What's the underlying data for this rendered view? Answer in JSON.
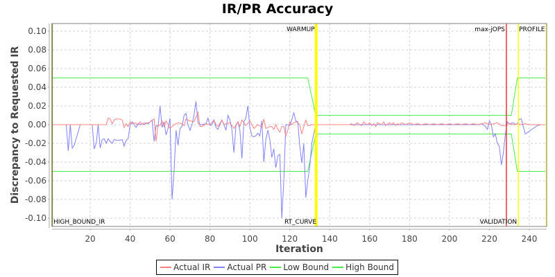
{
  "chart_data": {
    "type": "line",
    "title": "IR/PR Accuracy",
    "xlabel": "Iteration",
    "ylabel": "Discrepancy to Requested IR",
    "xlim": [
      1,
      248
    ],
    "ylim": [
      -0.105,
      0.105
    ],
    "x_ticks": [
      20,
      40,
      60,
      80,
      100,
      120,
      140,
      160,
      180,
      200,
      220,
      240
    ],
    "y_ticks": [
      "0.10",
      "0.08",
      "0.06",
      "0.04",
      "0.02",
      "0.00",
      "-0.02",
      "-0.04",
      "-0.06",
      "-0.08",
      "-0.10"
    ],
    "grid": true,
    "legend_position": "bottom",
    "series": [
      {
        "name": "Actual IR",
        "color": "#ff8080",
        "points": [
          [
            1,
            0
          ],
          [
            28,
            0
          ],
          [
            29,
            0.007
          ],
          [
            30,
            0.006
          ],
          [
            31,
            0.001
          ],
          [
            32,
            0.005
          ],
          [
            33,
            0.006
          ],
          [
            35,
            0.006
          ],
          [
            36,
            0.005
          ],
          [
            37,
            -0.003
          ],
          [
            38,
            0.001
          ],
          [
            39,
            -0.002
          ],
          [
            40,
            0.003
          ],
          [
            41,
            0.001
          ],
          [
            42,
            0.002
          ],
          [
            44,
            0
          ],
          [
            45,
            0.003
          ],
          [
            46,
            0
          ],
          [
            47,
            0.002
          ],
          [
            48,
            0.001
          ],
          [
            50,
            0.003
          ],
          [
            52,
            0.006
          ],
          [
            53,
            -0.018
          ],
          [
            54,
            0.0
          ],
          [
            55,
            -0.001
          ],
          [
            56,
            0.004
          ],
          [
            57,
            -0.002
          ],
          [
            58,
            0.004
          ],
          [
            60,
            -0.004
          ],
          [
            62,
            0.0
          ],
          [
            64,
            0.002
          ],
          [
            66,
            0.001
          ],
          [
            67,
            -0.001
          ],
          [
            68,
            0.006
          ],
          [
            70,
            0.004
          ],
          [
            72,
            0.003
          ],
          [
            74,
            0.013
          ],
          [
            75,
            -0.002
          ],
          [
            76,
            -0.002
          ],
          [
            78,
            0.001
          ],
          [
            80,
            0.0
          ],
          [
            82,
            0.005
          ],
          [
            83,
            0.0
          ],
          [
            84,
            -0.002
          ],
          [
            86,
            0.005
          ],
          [
            87,
            0.0
          ],
          [
            88,
            0.001
          ],
          [
            90,
            0.002
          ],
          [
            92,
            -0.004
          ],
          [
            94,
            0.003
          ],
          [
            95,
            -0.002
          ],
          [
            96,
            0.005
          ],
          [
            98,
            -0.001
          ],
          [
            100,
            0.004
          ],
          [
            101,
            0.0
          ],
          [
            102,
            -0.004
          ],
          [
            104,
            0.0
          ],
          [
            106,
            -0.003
          ],
          [
            107,
            0.006
          ],
          [
            108,
            -0.004
          ],
          [
            110,
            -0.002
          ],
          [
            111,
            -0.002
          ],
          [
            112,
            -0.005
          ],
          [
            113,
            0.0
          ],
          [
            114,
            -0.005
          ],
          [
            115,
            -0.008
          ],
          [
            116,
            -0.002
          ],
          [
            117,
            -0.002
          ],
          [
            118,
            -0.012
          ],
          [
            119,
            -0.006
          ],
          [
            120,
            0.003
          ],
          [
            121,
            0.0
          ],
          [
            122,
            0.002
          ],
          [
            123,
            0.003
          ],
          [
            124,
            0.002
          ],
          [
            125,
            0.0
          ],
          [
            126,
            -0.01
          ],
          [
            127,
            -0.002
          ],
          [
            128,
            0.005
          ],
          [
            129,
            -0.001
          ],
          [
            130,
            -0.001
          ],
          [
            131,
            0.0
          ],
          [
            133,
            0
          ],
          [
            150,
            0
          ],
          [
            151,
            0.001
          ],
          [
            152,
            -0.001
          ],
          [
            154,
            0.002
          ],
          [
            155,
            0
          ],
          [
            156,
            -0.001
          ],
          [
            157,
            0.003
          ],
          [
            158,
            0.001
          ],
          [
            159,
            0
          ],
          [
            160,
            0.002
          ],
          [
            161,
            -0.001
          ],
          [
            162,
            0.001
          ],
          [
            163,
            -0.002
          ],
          [
            164,
            0.002
          ],
          [
            165,
            0.001
          ],
          [
            166,
            0
          ],
          [
            167,
            0.003
          ],
          [
            168,
            -0.001
          ],
          [
            170,
            0.002
          ],
          [
            171,
            0.0
          ],
          [
            172,
            0.002
          ],
          [
            173,
            -0.001
          ],
          [
            174,
            0.001
          ],
          [
            175,
            0.0
          ],
          [
            176,
            0.002
          ],
          [
            178,
            0.0
          ],
          [
            180,
            0.002
          ],
          [
            182,
            0.0
          ],
          [
            184,
            0.001
          ],
          [
            186,
            0.0
          ],
          [
            188,
            0.001
          ],
          [
            190,
            0
          ],
          [
            192,
            0.001
          ],
          [
            194,
            0
          ],
          [
            196,
            0.001
          ],
          [
            198,
            0.0
          ],
          [
            200,
            0.001
          ],
          [
            202,
            0
          ],
          [
            204,
            0.001
          ],
          [
            206,
            0.0
          ],
          [
            208,
            0.001
          ],
          [
            210,
            0
          ],
          [
            212,
            0.001
          ],
          [
            214,
            0
          ],
          [
            216,
            0.001
          ],
          [
            218,
            0.002
          ],
          [
            220,
            0.0
          ],
          [
            222,
            0.001
          ],
          [
            224,
            0.002
          ],
          [
            226,
            -0.001
          ],
          [
            228,
            -0.001
          ],
          [
            230,
            0.001
          ],
          [
            232,
            0.0
          ],
          [
            234,
            0.001
          ],
          [
            236,
            0.0
          ],
          [
            238,
            0.001
          ],
          [
            240,
            0.0
          ],
          [
            242,
            0.0
          ],
          [
            244,
            0.0
          ],
          [
            246,
            0.0
          ],
          [
            248,
            0.0
          ]
        ]
      },
      {
        "name": "Actual PR",
        "color": "#8080ff",
        "points": [
          [
            1,
            0
          ],
          [
            8,
            0
          ],
          [
            9,
            -0.028
          ],
          [
            10,
            0
          ],
          [
            11,
            -0.025
          ],
          [
            12,
            -0.022
          ],
          [
            15,
            0
          ],
          [
            21,
            0
          ],
          [
            22,
            -0.026
          ],
          [
            23,
            -0.02
          ],
          [
            24,
            0
          ],
          [
            25,
            -0.025
          ],
          [
            26,
            -0.016
          ],
          [
            27,
            -0.015
          ],
          [
            28,
            -0.02
          ],
          [
            29,
            -0.015
          ],
          [
            30,
            -0.018
          ],
          [
            31,
            -0.02
          ],
          [
            32,
            -0.016
          ],
          [
            34,
            -0.017
          ],
          [
            36,
            -0.016
          ],
          [
            37,
            -0.023
          ],
          [
            38,
            -0.017
          ],
          [
            39,
            -0.015
          ],
          [
            40,
            0.0
          ],
          [
            41,
            0.003
          ],
          [
            42,
            0.0
          ],
          [
            43,
            -0.003
          ],
          [
            44,
            0.001
          ],
          [
            45,
            0.0
          ],
          [
            46,
            0.001
          ],
          [
            47,
            0.0
          ],
          [
            48,
            0.002
          ],
          [
            49,
            0.001
          ],
          [
            50,
            0.003
          ],
          [
            51,
            0.005
          ],
          [
            52,
            -0.018
          ],
          [
            53,
            -0.001
          ],
          [
            54,
            -0.002
          ],
          [
            55,
            0.02
          ],
          [
            56,
            -0.003
          ],
          [
            57,
            0.003
          ],
          [
            58,
            -0.011
          ],
          [
            59,
            -0.004
          ],
          [
            60,
            0.007
          ],
          [
            61,
            -0.08
          ],
          [
            62,
            -0.05
          ],
          [
            63,
            -0.006
          ],
          [
            64,
            -0.022
          ],
          [
            65,
            -0.004
          ],
          [
            66,
            -0.002
          ],
          [
            67,
            0.01
          ],
          [
            68,
            0.012
          ],
          [
            69,
            0.0
          ],
          [
            70,
            -0.006
          ],
          [
            71,
            0.0
          ],
          [
            72,
            0.01
          ],
          [
            73,
            0.025
          ],
          [
            74,
            0.002
          ],
          [
            75,
            0.0
          ],
          [
            76,
            0.0
          ],
          [
            78,
            0.001
          ],
          [
            79,
            0.007
          ],
          [
            80,
            -0.001
          ],
          [
            81,
            0.0
          ],
          [
            82,
            0.005
          ],
          [
            83,
            -0.003
          ],
          [
            84,
            -0.005
          ],
          [
            85,
            0.0
          ],
          [
            86,
            0.005
          ],
          [
            87,
            -0.0
          ],
          [
            88,
            -0.006
          ],
          [
            89,
            0.01
          ],
          [
            90,
            0.005
          ],
          [
            91,
            -0.005
          ],
          [
            92,
            -0.03
          ],
          [
            93,
            -0.001
          ],
          [
            94,
            0.003
          ],
          [
            95,
            -0.006
          ],
          [
            96,
            -0.036
          ],
          [
            97,
            0.003
          ],
          [
            98,
            0.007
          ],
          [
            99,
            0.02
          ],
          [
            100,
            -0.003
          ],
          [
            101,
            -0.012
          ],
          [
            102,
            -0.013
          ],
          [
            103,
            -0.012
          ],
          [
            104,
            -0.009
          ],
          [
            105,
            -0.012
          ],
          [
            106,
            0.004
          ],
          [
            107,
            -0.04
          ],
          [
            108,
            -0.016
          ],
          [
            109,
            -0.006
          ],
          [
            110,
            -0.016
          ],
          [
            111,
            -0.035
          ],
          [
            112,
            -0.026
          ],
          [
            113,
            -0.046
          ],
          [
            114,
            -0.033
          ],
          [
            115,
            -0.032
          ],
          [
            116,
            -0.1
          ],
          [
            117,
            -0.06
          ],
          [
            118,
            0.0
          ],
          [
            119,
            0.0
          ],
          [
            120,
            -0.001
          ],
          [
            121,
            0.005
          ],
          [
            122,
            0.013
          ],
          [
            123,
            0.004
          ],
          [
            124,
            0.003
          ],
          [
            125,
            -0.023
          ],
          [
            126,
            -0.041
          ],
          [
            127,
            -0.02
          ],
          [
            128,
            -0.078
          ],
          [
            129,
            -0.06
          ],
          [
            130,
            -0.045
          ],
          [
            131,
            -0.02
          ],
          [
            133,
            0
          ],
          [
            215,
            0
          ],
          [
            216,
            0.001
          ],
          [
            217,
            0
          ],
          [
            218,
            -0.002
          ],
          [
            219,
            -0.005
          ],
          [
            220,
            0.004
          ],
          [
            221,
            0.0
          ],
          [
            222,
            -0.013
          ],
          [
            223,
            -0.01
          ],
          [
            224,
            -0.02
          ],
          [
            225,
            -0.023
          ],
          [
            226,
            -0.043
          ],
          [
            227,
            -0.03
          ],
          [
            228,
            -0.01
          ],
          [
            229,
            0.003
          ],
          [
            230,
            0.001
          ],
          [
            232,
            0.002
          ],
          [
            233,
            0.0
          ],
          [
            234,
            0.001
          ],
          [
            235,
            0.006
          ],
          [
            236,
            0.006
          ],
          [
            237,
            -0.002
          ],
          [
            238,
            -0.01
          ],
          [
            240,
            -0.007
          ],
          [
            242,
            -0.004
          ],
          [
            244,
            -0.001
          ],
          [
            246,
            0.0
          ],
          [
            248,
            0.0
          ]
        ]
      },
      {
        "name": "Low Bound",
        "color": "#44ee44",
        "points": [
          [
            1,
            -0.05
          ],
          [
            129,
            -0.05
          ],
          [
            133,
            -0.01
          ],
          [
            231,
            -0.01
          ],
          [
            234,
            -0.05
          ],
          [
            248,
            -0.05
          ]
        ]
      },
      {
        "name": "High Bound",
        "color": "#44ee44",
        "points": [
          [
            1,
            0.05
          ],
          [
            129,
            0.05
          ],
          [
            133,
            0.01
          ],
          [
            231,
            0.01
          ],
          [
            234,
            0.05
          ],
          [
            248,
            0.05
          ]
        ]
      }
    ],
    "markers": [
      {
        "label": "HIGH_BOUND_IR",
        "x": 1,
        "color": "#808040",
        "label_pos": "bottom"
      },
      {
        "label": "WARMUP",
        "x": 133.2,
        "color": "#ffff00",
        "label_pos": "top"
      },
      {
        "label": "RT_CURVE",
        "x": 134,
        "color": "#ffff00",
        "label_pos": "bottom"
      },
      {
        "label": "max-jOPS",
        "x": 228.5,
        "color": "#ee3333",
        "label_pos": "top"
      },
      {
        "label": "VALIDATION",
        "x": 234.5,
        "color": "#ffff00",
        "label_pos": "bottom"
      },
      {
        "label": "PROFILE",
        "x": 248.5,
        "color": "#ffff00",
        "label_pos": "top"
      }
    ]
  },
  "legend": {
    "items": [
      {
        "label": "Actual IR",
        "color": "#ff8080"
      },
      {
        "label": "Actual PR",
        "color": "#8080ff"
      },
      {
        "label": "Low Bound",
        "color": "#44ee44"
      },
      {
        "label": "High Bound",
        "color": "#44ee44"
      }
    ]
  }
}
